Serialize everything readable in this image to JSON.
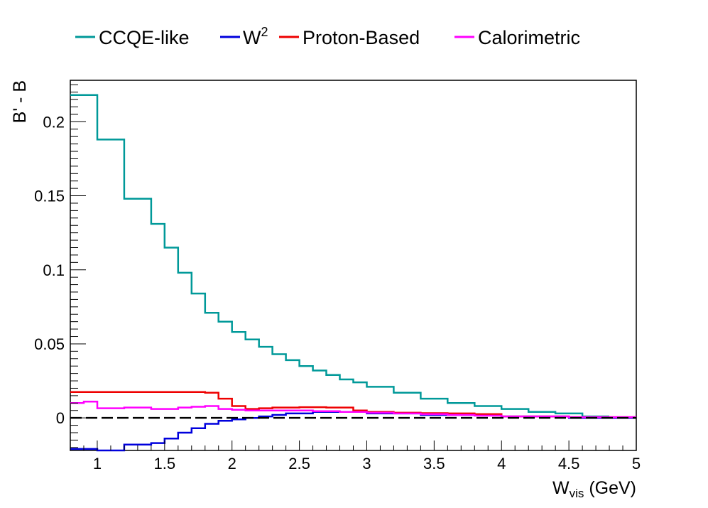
{
  "chart_data": {
    "type": "line",
    "step": true,
    "xlabel": "W",
    "xlabel_sub": "vis",
    "xlabel_unit": " (GeV)",
    "ylabel": "B' - B",
    "xlim": [
      0.8,
      5.0
    ],
    "ylim": [
      -0.022,
      0.228
    ],
    "x_ticks": [
      1,
      1.5,
      2,
      2.5,
      3,
      3.5,
      4,
      4.5,
      5
    ],
    "x_tick_labels": [
      "1",
      "1.5",
      "2",
      "2.5",
      "3",
      "3.5",
      "4",
      "4.5",
      "5"
    ],
    "y_ticks": [
      0,
      0.05,
      0.1,
      0.15,
      0.2
    ],
    "y_tick_labels": [
      "0",
      "0.05",
      "0.1",
      "0.15",
      "0.2"
    ],
    "reference_line": {
      "y": 0,
      "style": "dashed",
      "color": "#000000"
    },
    "legend": {
      "placement": "top",
      "orientation": "horizontal"
    },
    "series": [
      {
        "name": "CCQE-like",
        "color": "#009999",
        "edges": [
          0.8,
          1.0,
          1.2,
          1.4,
          1.5,
          1.6,
          1.7,
          1.8,
          1.9,
          2.0,
          2.1,
          2.2,
          2.3,
          2.4,
          2.5,
          2.6,
          2.7,
          2.8,
          2.9,
          3.0,
          3.2,
          3.4,
          3.6,
          3.8,
          4.0,
          4.2,
          4.4,
          4.6,
          4.8
        ],
        "values": [
          0.218,
          0.188,
          0.148,
          0.131,
          0.115,
          0.098,
          0.084,
          0.071,
          0.065,
          0.058,
          0.053,
          0.048,
          0.043,
          0.039,
          0.035,
          0.032,
          0.029,
          0.026,
          0.024,
          0.021,
          0.017,
          0.013,
          0.01,
          0.008,
          0.006,
          0.004,
          0.003,
          0.001
        ]
      },
      {
        "name": "W",
        "name_sup": "2",
        "color": "#0000dd",
        "edges": [
          0.8,
          1.0,
          1.2,
          1.4,
          1.5,
          1.6,
          1.7,
          1.8,
          1.9,
          2.0,
          2.1,
          2.2,
          2.3,
          2.4,
          2.5,
          2.6,
          2.7,
          2.8,
          2.9,
          3.0,
          3.2,
          3.4,
          3.6,
          3.8,
          4.0,
          4.5,
          5.0
        ],
        "values": [
          -0.021,
          -0.022,
          -0.018,
          -0.017,
          -0.014,
          -0.01,
          -0.007,
          -0.004,
          -0.002,
          -0.001,
          0.0,
          0.001,
          0.002,
          0.003,
          0.003,
          0.004,
          0.004,
          0.004,
          0.004,
          0.003,
          0.003,
          0.002,
          0.002,
          0.002,
          0.001,
          0.0
        ]
      },
      {
        "name": "Proton-Based",
        "color": "#ee0000",
        "edges": [
          0.8,
          1.8,
          1.9,
          2.0,
          2.1,
          2.2,
          2.3,
          2.5,
          2.7,
          2.9,
          3.0,
          3.2,
          3.4,
          3.6,
          3.8,
          4.0,
          4.5,
          5.0
        ],
        "values": [
          0.0175,
          0.017,
          0.013,
          0.008,
          0.006,
          0.0065,
          0.007,
          0.0072,
          0.007,
          0.005,
          0.004,
          0.0035,
          0.0032,
          0.003,
          0.0025,
          0.001,
          0.0005
        ]
      },
      {
        "name": "Calorimetric",
        "color": "#ff00ff",
        "edges": [
          0.8,
          0.9,
          1.0,
          1.2,
          1.4,
          1.6,
          1.7,
          1.8,
          1.9,
          2.0,
          2.1,
          2.2,
          2.4,
          2.6,
          2.8,
          3.0,
          3.2,
          3.4,
          3.6,
          3.8,
          4.0,
          4.5,
          5.0
        ],
        "values": [
          0.01,
          0.011,
          0.0065,
          0.007,
          0.006,
          0.007,
          0.0075,
          0.008,
          0.006,
          0.0055,
          0.005,
          0.005,
          0.005,
          0.0045,
          0.004,
          0.0035,
          0.003,
          0.0025,
          0.002,
          0.0015,
          0.001,
          0.0005
        ]
      }
    ]
  }
}
